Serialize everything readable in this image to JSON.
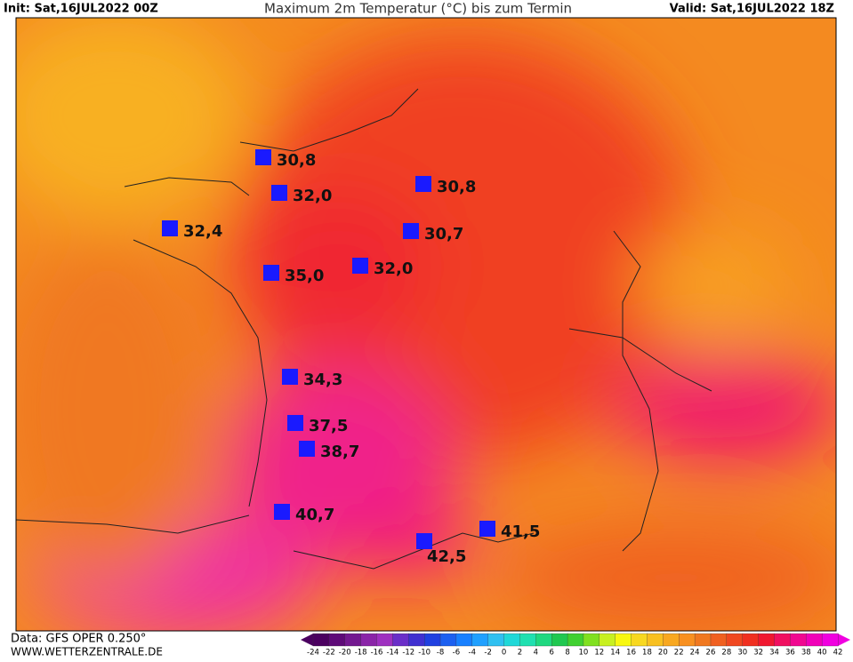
{
  "header": {
    "init": "Init: Sat,16JUL2022 00Z",
    "title": "Maximum 2m Temperatur (°C) bis zum Termin",
    "valid": "Valid: Sat,16JUL2022 18Z"
  },
  "stations": [
    "30,8",
    "32,0",
    "32,4",
    "30,8",
    "30,7",
    "32,0",
    "35,0",
    "34,3",
    "37,5",
    "38,7",
    "40,7",
    "41,5",
    "42,5"
  ],
  "station_color": "#1a1aff",
  "footer": {
    "source": "Data: GFS OPER 0.250°",
    "site": "WWW.WETTERZENTRALE.DE"
  },
  "scale": {
    "ticks": [
      -24,
      -22,
      -20,
      -18,
      -16,
      -14,
      -12,
      -10,
      -8,
      -6,
      -4,
      -2,
      0,
      2,
      4,
      6,
      8,
      10,
      12,
      14,
      16,
      18,
      20,
      22,
      24,
      26,
      28,
      30,
      32,
      34,
      36,
      38,
      40,
      42
    ],
    "colors": [
      "#4b0060",
      "#5e0a78",
      "#731890",
      "#8a24a8",
      "#9e30c0",
      "#6a2ec8",
      "#4030d0",
      "#2040e0",
      "#1c60f0",
      "#1880ff",
      "#20a0ff",
      "#30c0f0",
      "#20d8d8",
      "#20e0b0",
      "#20d880",
      "#20c850",
      "#40d030",
      "#80e020",
      "#c8f020",
      "#f8f810",
      "#f8d820",
      "#f8c020",
      "#f8a820",
      "#f89020",
      "#f07820",
      "#f06020",
      "#f04820",
      "#f03020",
      "#f01830",
      "#f01060",
      "#f00890",
      "#f000b8",
      "#f000e0"
    ]
  }
}
